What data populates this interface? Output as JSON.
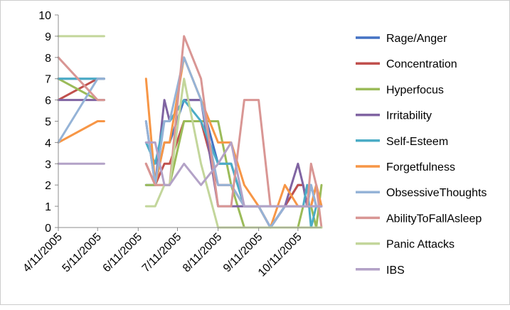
{
  "chart_data": {
    "type": "line",
    "title": "",
    "xlabel": "",
    "ylabel": "",
    "ylim": [
      0,
      10
    ],
    "y_ticks": [
      "0",
      "1",
      "2",
      "3",
      "4",
      "5",
      "6",
      "7",
      "8",
      "9",
      "10"
    ],
    "x_tick_labels": [
      "4/11/2005",
      "5/11/2005",
      "6/11/2005",
      "7/11/2005",
      "8/11/2005",
      "9/11/2005",
      "10/11/2005"
    ],
    "x": [
      "4/11/2005",
      "5/11/2005",
      "5/16/2005",
      "6/11/2005",
      "6/17/2005",
      "6/24/2005",
      "7/1/2005",
      "7/5/2005",
      "7/16/2005",
      "7/29/2005",
      "8/11/2005",
      "8/21/2005",
      "8/31/2005",
      "9/11/2005",
      "9/20/2005",
      "10/1/2005",
      "10/11/2005",
      "10/15/2005",
      "10/18/2005",
      "10/21/2005",
      "10/25/2005",
      "10/29/2005"
    ],
    "grid": false,
    "legend_position": "right",
    "series": [
      {
        "name": "Rage/Anger",
        "color": "#4472C4",
        "values": [
          7,
          7,
          7,
          null,
          2,
          2,
          4,
          4,
          6,
          6,
          3,
          3,
          1,
          1,
          0,
          1,
          2,
          2,
          1,
          2,
          1,
          1
        ]
      },
      {
        "name": "Concentration",
        "color": "#C0504D",
        "values": [
          6,
          7,
          7,
          null,
          3,
          2,
          3,
          3,
          5,
          5,
          2,
          2,
          1,
          1,
          0,
          1,
          2,
          2,
          1,
          1,
          2,
          1
        ]
      },
      {
        "name": "Hyperfocus",
        "color": "#9BBB59",
        "values": [
          7,
          6,
          6,
          null,
          2,
          2,
          2,
          2,
          5,
          5,
          5,
          2,
          0,
          0,
          0,
          0,
          0,
          1,
          1,
          1,
          0,
          2
        ]
      },
      {
        "name": "Irritability",
        "color": "#8064A2",
        "values": [
          6,
          6,
          6,
          null,
          5,
          2,
          6,
          5,
          6,
          6,
          1,
          1,
          1,
          1,
          0,
          1,
          3,
          2,
          1,
          1,
          1,
          1
        ]
      },
      {
        "name": "Self-Esteem",
        "color": "#4BACC6",
        "values": [
          7,
          7,
          7,
          null,
          4,
          3,
          5,
          5,
          6,
          5,
          3,
          3,
          1,
          1,
          1,
          1,
          1,
          1,
          2,
          0,
          1,
          1
        ]
      },
      {
        "name": "Forgetfulness",
        "color": "#F79646",
        "values": [
          4,
          5,
          5,
          null,
          7,
          2,
          4,
          4,
          8,
          6,
          4,
          4,
          2,
          1,
          0,
          2,
          1,
          1,
          1,
          1,
          2,
          1
        ]
      },
      {
        "name": "ObsessiveThoughts",
        "color": "#95B3D7",
        "values": [
          4,
          7,
          7,
          null,
          5,
          2,
          5,
          5,
          8,
          6,
          2,
          2,
          1,
          1,
          0,
          1,
          1,
          1,
          1,
          2,
          1,
          1
        ]
      },
      {
        "name": "AbilityToFallAsleep",
        "color": "#D99694",
        "values": [
          8,
          6,
          6,
          null,
          3,
          2,
          2,
          2,
          9,
          7,
          1,
          1,
          6,
          6,
          1,
          1,
          1,
          1,
          1,
          3,
          2,
          0
        ]
      },
      {
        "name": "Panic Attacks",
        "color": "#C3D69B",
        "values": [
          9,
          9,
          9,
          null,
          1,
          1,
          2,
          2,
          7,
          3,
          0,
          0,
          0,
          0,
          0,
          0,
          0,
          0,
          0,
          0,
          0,
          0
        ]
      },
      {
        "name": "IBS",
        "color": "#B3A2C7",
        "values": [
          3,
          3,
          3,
          null,
          4,
          4,
          2,
          2,
          3,
          2,
          3,
          4,
          1,
          1,
          1,
          1,
          1,
          1,
          1,
          1,
          1,
          1
        ]
      }
    ]
  }
}
